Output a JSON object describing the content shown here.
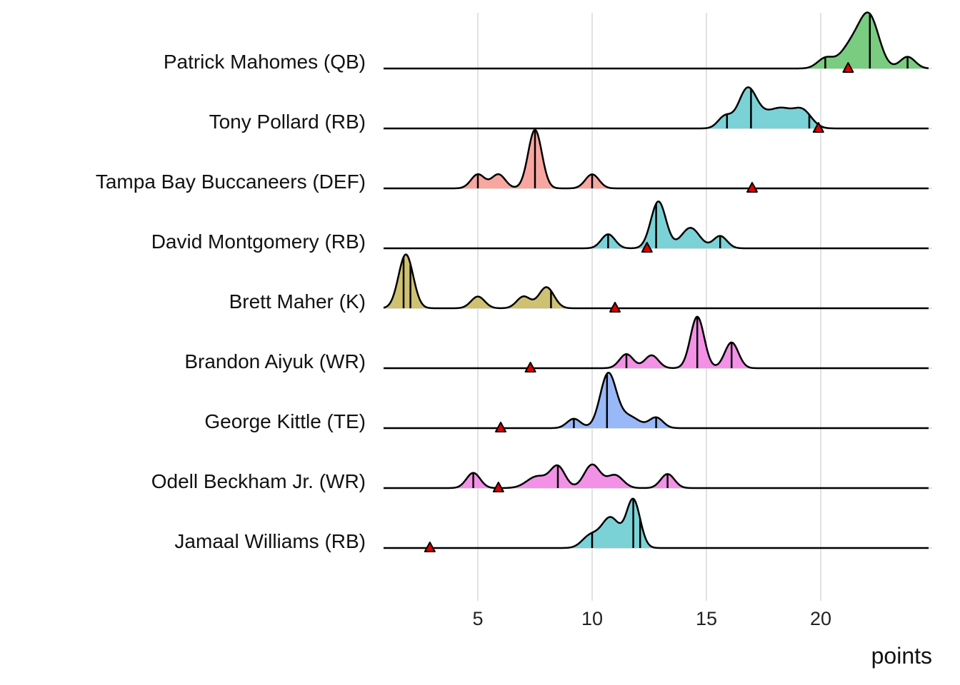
{
  "chart_data": {
    "type": "ridgeline",
    "xlabel": "points",
    "ylabel": "",
    "xlim": [
      0.875,
      24.7
    ],
    "xticks": [
      5,
      10,
      15,
      20
    ],
    "xtick_labels": [
      "5",
      "10",
      "15",
      "20"
    ],
    "grid": true,
    "legend": "none",
    "marker_color": "#e00000",
    "series": [
      {
        "name": "Patrick Mahomes (QB)",
        "color": "#73c97a",
        "components": [
          [
            20.2,
            0.35,
            0.17
          ],
          [
            21.4,
            0.5,
            0.42
          ],
          [
            22.15,
            0.42,
            0.8
          ],
          [
            23.8,
            0.33,
            0.2
          ]
        ],
        "quantiles": [
          20.2,
          22.15,
          23.8
        ],
        "actual": 21.2
      },
      {
        "name": "Tony Pollard (RB)",
        "color": "#74d0d4",
        "components": [
          [
            15.8,
            0.3,
            0.2
          ],
          [
            16.8,
            0.4,
            0.68
          ],
          [
            17.6,
            0.4,
            0.15
          ],
          [
            18.3,
            0.45,
            0.3
          ],
          [
            19.2,
            0.4,
            0.3
          ]
        ],
        "quantiles": [
          15.9,
          16.95,
          19.5
        ],
        "actual": 19.9
      },
      {
        "name": "Tampa Bay Buccaneers (DEF)",
        "color": "#f8a29b",
        "components": [
          [
            5.0,
            0.3,
            0.24
          ],
          [
            5.9,
            0.3,
            0.24
          ],
          [
            7.5,
            0.3,
            1.0
          ],
          [
            10.0,
            0.3,
            0.24
          ]
        ],
        "quantiles": [
          5.0,
          7.5,
          10.0
        ],
        "actual": 17.0
      },
      {
        "name": "David Montgomery (RB)",
        "color": "#74d0d4",
        "components": [
          [
            10.7,
            0.3,
            0.24
          ],
          [
            12.9,
            0.33,
            0.8
          ],
          [
            14.3,
            0.4,
            0.35
          ],
          [
            15.6,
            0.3,
            0.21
          ]
        ],
        "quantiles": [
          10.7,
          12.8,
          15.6
        ],
        "actual": 12.4
      },
      {
        "name": "Brett Maher (K)",
        "color": "#cbbe69",
        "components": [
          [
            1.85,
            0.32,
            0.92
          ],
          [
            5.0,
            0.3,
            0.2
          ],
          [
            7.0,
            0.3,
            0.2
          ],
          [
            8.0,
            0.33,
            0.36
          ]
        ],
        "quantiles": [
          1.75,
          2.05,
          8.2
        ],
        "actual": 11.0
      },
      {
        "name": "Brandon Aiyuk (WR)",
        "color": "#f28be5",
        "components": [
          [
            11.5,
            0.3,
            0.24
          ],
          [
            12.6,
            0.3,
            0.22
          ],
          [
            14.6,
            0.3,
            0.88
          ],
          [
            16.1,
            0.3,
            0.44
          ]
        ],
        "quantiles": [
          11.5,
          14.6,
          16.1
        ],
        "actual": 7.3
      },
      {
        "name": "George Kittle (TE)",
        "color": "#93b4f8",
        "components": [
          [
            9.2,
            0.3,
            0.16
          ],
          [
            10.7,
            0.35,
            0.92
          ],
          [
            11.6,
            0.45,
            0.2
          ],
          [
            12.8,
            0.3,
            0.18
          ]
        ],
        "quantiles": [
          9.2,
          10.65,
          12.8
        ],
        "actual": 6.0
      },
      {
        "name": "Odell Beckham Jr. (WR)",
        "color": "#f28be5",
        "components": [
          [
            4.8,
            0.3,
            0.26
          ],
          [
            7.6,
            0.45,
            0.2
          ],
          [
            8.5,
            0.32,
            0.36
          ],
          [
            10.0,
            0.35,
            0.4
          ],
          [
            11.0,
            0.35,
            0.22
          ],
          [
            13.3,
            0.3,
            0.24
          ]
        ],
        "quantiles": [
          4.8,
          8.5,
          13.3
        ],
        "actual": 5.9
      },
      {
        "name": "Jamaal Williams (RB)",
        "color": "#74d0d4",
        "components": [
          [
            9.9,
            0.35,
            0.2
          ],
          [
            10.8,
            0.4,
            0.52
          ],
          [
            11.8,
            0.3,
            0.82
          ]
        ],
        "quantiles": [
          10.0,
          11.8,
          12.1
        ],
        "actual": 2.9
      }
    ]
  }
}
